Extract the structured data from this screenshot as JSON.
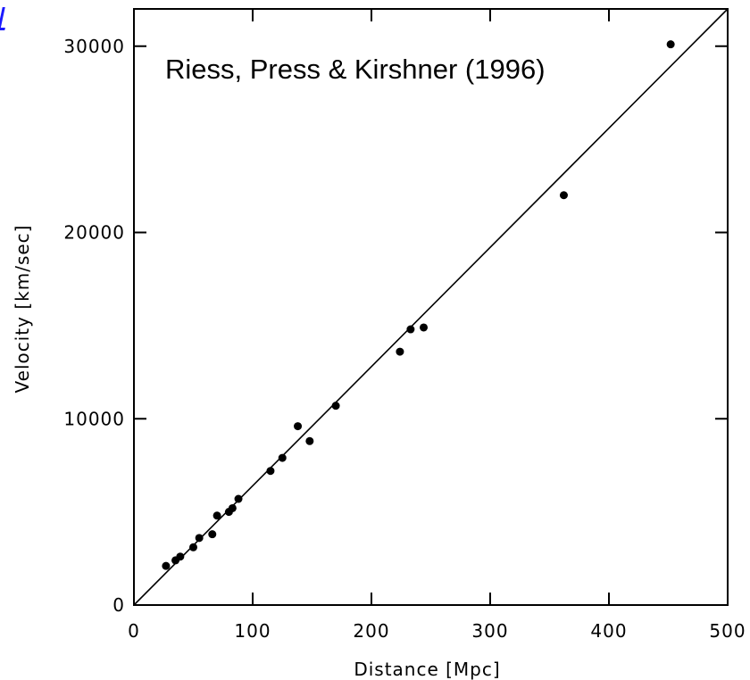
{
  "chart_data": {
    "type": "scatter",
    "title": "",
    "annotation": "Riess, Press & Kirshner (1996)",
    "xlabel": "Distance [Mpc]",
    "ylabel": "Velocity [km/sec]",
    "xlim": [
      0,
      500
    ],
    "ylim": [
      0,
      32000
    ],
    "x_ticks": [
      0,
      100,
      200,
      300,
      400,
      500
    ],
    "y_ticks": [
      0,
      10000,
      20000,
      30000
    ],
    "x_tick_labels": [
      "0",
      "100",
      "200",
      "300",
      "400",
      "500"
    ],
    "y_tick_labels": [
      "0",
      "10000",
      "20000",
      "30000"
    ],
    "grid": false,
    "fit_line": {
      "x": [
        0,
        500
      ],
      "y": [
        0,
        32000
      ]
    },
    "points": {
      "x": [
        27,
        35,
        39,
        50,
        55,
        66,
        70,
        80,
        83,
        88,
        115,
        125,
        138,
        148,
        170,
        224,
        233,
        244,
        362,
        452
      ],
      "y": [
        2100,
        2400,
        2600,
        3100,
        3600,
        3800,
        4800,
        5000,
        5200,
        5700,
        7200,
        7900,
        9600,
        8800,
        10700,
        13600,
        14800,
        14900,
        22000,
        30100
      ]
    }
  }
}
